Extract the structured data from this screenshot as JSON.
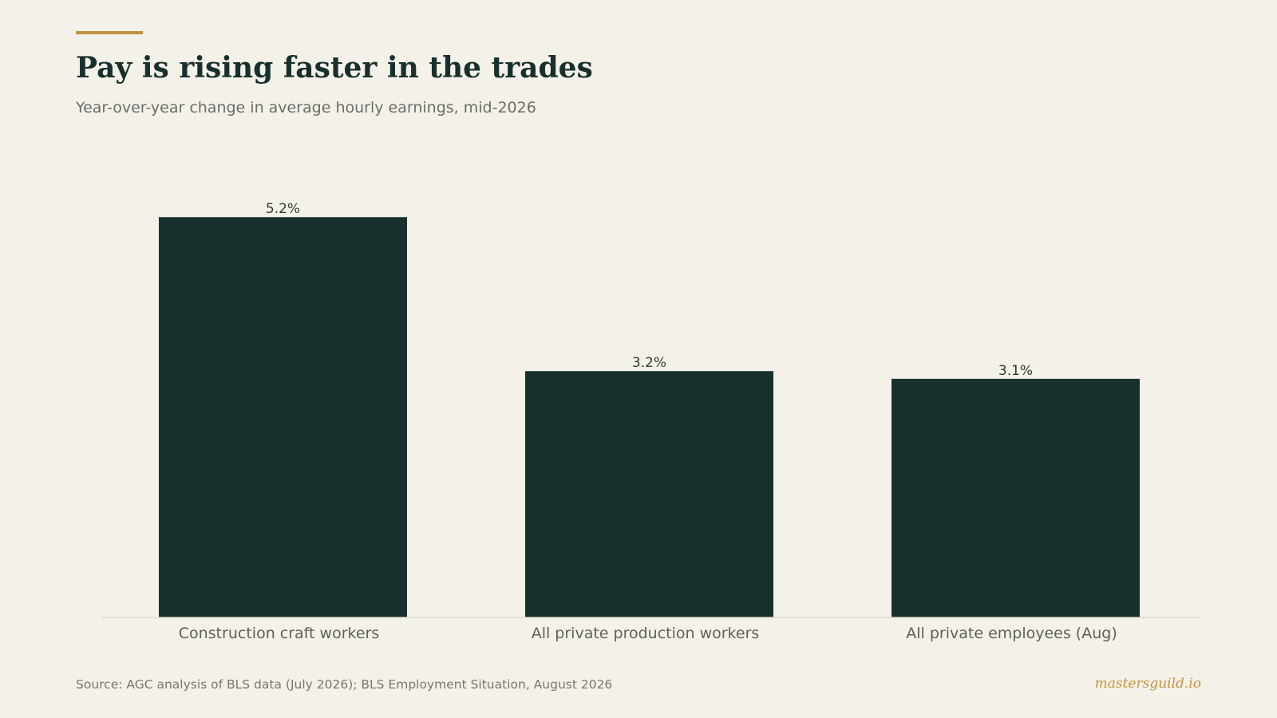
{
  "header": {
    "title": "Pay is rising faster in the trades",
    "subtitle": "Year-over-year change in average hourly earnings, mid-2026"
  },
  "footer": {
    "source": "Source: AGC analysis of BLS data (July 2026); BLS Employment Situation, August 2026",
    "brand": "mastersguild.io"
  },
  "colors": {
    "background": "#f4f1e8",
    "bar": "#18302d",
    "accent": "#bf9540"
  },
  "chart_data": {
    "type": "bar",
    "title": "Pay is rising faster in the trades",
    "subtitle": "Year-over-year change in average hourly earnings, mid-2026",
    "categories": [
      "Construction craft workers",
      "All private production workers",
      "All private employees (Aug)"
    ],
    "values": [
      5.2,
      3.2,
      3.1
    ],
    "value_labels": [
      "5.2%",
      "3.2%",
      "3.1%"
    ],
    "unit": "%",
    "ylim": [
      0,
      6
    ],
    "xlabel": "",
    "ylabel": "",
    "grid": false,
    "legend": "none",
    "data_labels": true
  }
}
